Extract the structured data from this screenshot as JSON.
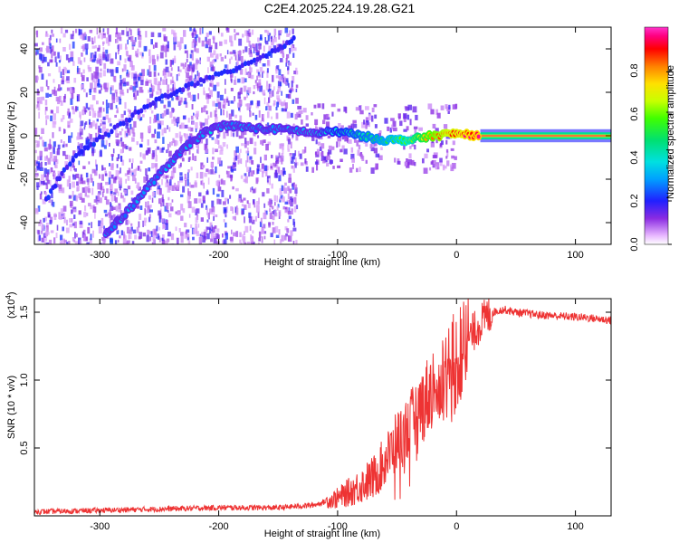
{
  "title": "C2E4.2025.224.19.28.G21",
  "chart_data": [
    {
      "type": "heatmap",
      "xlabel": "Height of straight line (km)",
      "ylabel": "Frequency (Hz)",
      "xlim": [
        -355,
        130
      ],
      "ylim": [
        -50,
        50
      ],
      "xticks": [
        -300,
        -200,
        -100,
        0,
        100
      ],
      "yticks": [
        -40,
        -20,
        0,
        20,
        40
      ],
      "colorbar": {
        "label": "Normalized spectral amplitude",
        "range": [
          0,
          1
        ],
        "ticks": [
          "0.0",
          "0.2",
          "0.4",
          "0.6",
          "0.8"
        ],
        "tick_values": [
          0.0,
          0.2,
          0.4,
          0.6,
          0.8
        ]
      },
      "ridge": {
        "x": [
          -295,
          -280,
          -260,
          -240,
          -225,
          -210,
          -195,
          -180,
          -160,
          -140,
          -120,
          -100,
          -80,
          -60,
          -40,
          -20,
          0,
          20,
          40,
          80,
          130
        ],
        "frequency": [
          -45,
          -37,
          -24,
          -12,
          -4,
          2,
          5,
          4,
          3,
          3,
          1,
          2,
          0,
          -2,
          -2,
          0,
          1,
          0,
          0,
          0,
          0
        ],
        "amplitude": [
          0.3,
          0.3,
          0.3,
          0.3,
          0.3,
          0.35,
          0.35,
          0.3,
          0.3,
          0.3,
          0.35,
          0.4,
          0.45,
          0.5,
          0.6,
          0.8,
          0.9,
          0.95,
          0.95,
          0.95,
          0.95
        ]
      },
      "secondary_ridge": {
        "x": [
          -345,
          -330,
          -310,
          -290,
          -270,
          -250,
          -230,
          -210,
          -190,
          -170,
          -150,
          -135
        ],
        "frequency": [
          -30,
          -15,
          -5,
          2,
          10,
          17,
          22,
          26,
          30,
          35,
          40,
          45
        ]
      },
      "noise_region_x": [
        -355,
        -135
      ]
    },
    {
      "type": "line",
      "xlabel": "Height of straight line (km)",
      "ylabel": "SNR (10 * v/v)",
      "multiplier_label": "(x10",
      "multiplier_exp": "4",
      "multiplier_close": ")",
      "xlim": [
        -355,
        130
      ],
      "ylim": [
        0,
        1.6
      ],
      "xticks": [
        -300,
        -200,
        -100,
        0,
        100
      ],
      "yticks": [
        0.5,
        1.0,
        1.5
      ],
      "ytick_labels": [
        "0.5",
        "1.0",
        "1.5"
      ],
      "series": [
        {
          "color": "#ee3333",
          "x": [
            -355,
            -300,
            -250,
            -200,
            -150,
            -120,
            -100,
            -85,
            -70,
            -60,
            -50,
            -40,
            -30,
            -20,
            -10,
            0,
            10,
            20,
            30,
            40,
            50,
            70,
            90,
            110,
            130
          ],
          "y": [
            0.03,
            0.04,
            0.05,
            0.06,
            0.06,
            0.08,
            0.13,
            0.2,
            0.28,
            0.4,
            0.55,
            0.65,
            0.8,
            0.95,
            1.05,
            1.15,
            1.3,
            1.42,
            1.5,
            1.52,
            1.5,
            1.48,
            1.47,
            1.46,
            1.44
          ]
        }
      ]
    }
  ]
}
